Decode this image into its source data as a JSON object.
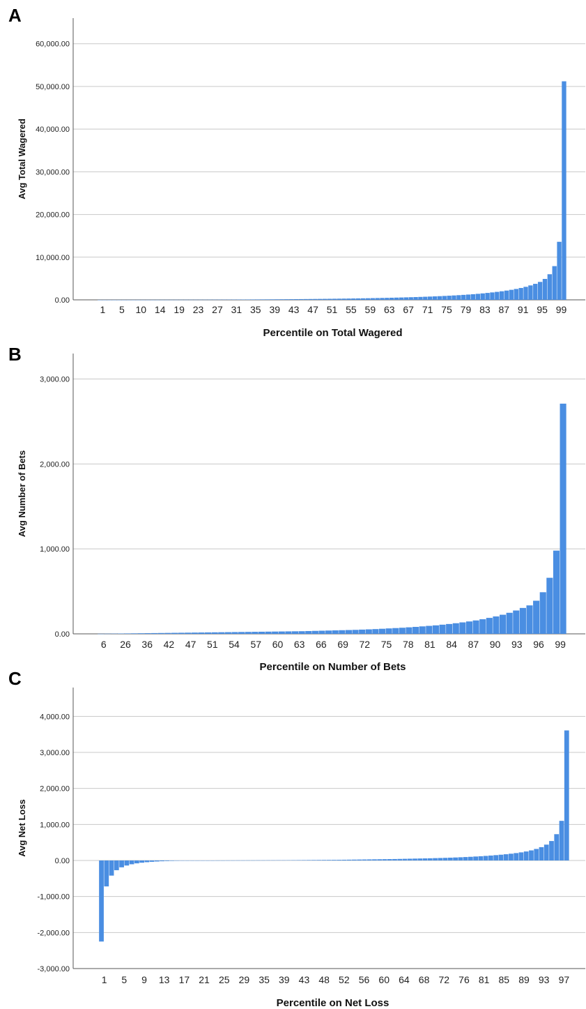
{
  "bar_color": "#4a8ee2",
  "chart_data": [
    {
      "panel": "A",
      "type": "bar",
      "xlabel": "Percentile on Total Wagered",
      "ylabel": "Avg Total Wagered",
      "ylim": [
        0,
        66000
      ],
      "yticks": [
        "0.00",
        "10,000.00",
        "20,000.00",
        "30,000.00",
        "40,000.00",
        "50,000.00",
        "60,000.00"
      ],
      "ytick_values": [
        0,
        10000,
        20000,
        30000,
        40000,
        50000,
        60000
      ],
      "xticks": [
        "1",
        "5",
        "10",
        "14",
        "19",
        "23",
        "27",
        "31",
        "35",
        "39",
        "43",
        "47",
        "51",
        "55",
        "59",
        "63",
        "67",
        "71",
        "75",
        "79",
        "83",
        "87",
        "91",
        "95",
        "99"
      ],
      "grid": true,
      "values": [
        1,
        2,
        3,
        4,
        5,
        6,
        7,
        8,
        9,
        10,
        12,
        14,
        16,
        18,
        20,
        22,
        25,
        28,
        31,
        34,
        37,
        40,
        44,
        48,
        52,
        56,
        60,
        65,
        70,
        75,
        80,
        86,
        92,
        98,
        105,
        112,
        120,
        128,
        136,
        145,
        154,
        164,
        174,
        185,
        196,
        208,
        220,
        233,
        246,
        260,
        275,
        290,
        306,
        323,
        341,
        360,
        380,
        401,
        423,
        446,
        470,
        496,
        523,
        552,
        583,
        616,
        651,
        688,
        728,
        770,
        815,
        863,
        915,
        970,
        1030,
        1095,
        1165,
        1240,
        1320,
        1410,
        1510,
        1620,
        1740,
        1870,
        2010,
        2170,
        2350,
        2550,
        2780,
        3050,
        3380,
        3750,
        4200,
        4900,
        6000,
        7900,
        13600,
        51200
      ]
    },
    {
      "panel": "B",
      "type": "bar",
      "xlabel": "Percentile on Number of Bets",
      "ylabel": "Avg Number of Bets",
      "ylim": [
        0,
        3300
      ],
      "yticks": [
        "0.00",
        "1,000.00",
        "2,000.00",
        "3,000.00"
      ],
      "ytick_values": [
        0,
        1000,
        2000,
        3000
      ],
      "xticks": [
        "6",
        "26",
        "36",
        "42",
        "47",
        "51",
        "54",
        "57",
        "60",
        "63",
        "66",
        "69",
        "72",
        "75",
        "78",
        "81",
        "84",
        "87",
        "90",
        "93",
        "96",
        "99"
      ],
      "grid": true,
      "values": [
        1,
        2,
        3,
        4,
        5,
        6,
        7,
        8,
        9,
        10,
        11,
        12,
        13,
        14,
        15,
        16,
        17,
        18,
        19,
        20,
        21,
        22,
        23,
        24,
        25,
        26,
        27,
        28,
        29,
        30,
        31,
        33,
        35,
        37,
        39,
        41,
        43,
        45,
        47,
        50,
        53,
        56,
        60,
        64,
        68,
        72,
        77,
        82,
        88,
        94,
        100,
        108,
        116,
        125,
        135,
        146,
        158,
        172,
        188,
        205,
        225,
        248,
        275,
        305,
        335,
        390,
        490,
        660,
        980,
        2710
      ]
    },
    {
      "panel": "C",
      "type": "bar",
      "xlabel": "Percentile on Net Loss",
      "ylabel": "Avg Net Loss",
      "ylim": [
        -3000,
        4800
      ],
      "yticks": [
        "-3,000.00",
        "-2,000.00",
        "-1,000.00",
        "0.00",
        "1,000.00",
        "2,000.00",
        "3,000.00",
        "4,000.00"
      ],
      "ytick_values": [
        -3000,
        -2000,
        -1000,
        0,
        1000,
        2000,
        3000,
        4000
      ],
      "xticks": [
        "1",
        "5",
        "9",
        "13",
        "17",
        "21",
        "25",
        "29",
        "35",
        "39",
        "43",
        "48",
        "52",
        "56",
        "60",
        "64",
        "68",
        "72",
        "76",
        "81",
        "85",
        "89",
        "93",
        "97"
      ],
      "grid": true,
      "values": [
        -2250,
        -720,
        -420,
        -270,
        -190,
        -140,
        -105,
        -80,
        -62,
        -48,
        -37,
        -28,
        -21,
        -16,
        -12,
        -9,
        -6,
        -4,
        -3,
        -2,
        -1,
        0,
        0,
        1,
        1,
        2,
        2,
        3,
        3,
        4,
        4,
        5,
        5,
        6,
        6,
        7,
        7,
        8,
        9,
        10,
        11,
        12,
        13,
        14,
        15,
        16,
        17,
        18,
        20,
        22,
        24,
        26,
        28,
        30,
        32,
        34,
        36,
        38,
        40,
        43,
        46,
        49,
        52,
        55,
        58,
        61,
        65,
        69,
        73,
        78,
        83,
        89,
        95,
        102,
        110,
        118,
        127,
        137,
        148,
        160,
        173,
        188,
        205,
        225,
        250,
        280,
        320,
        370,
        440,
        540,
        730,
        1100,
        3610
      ]
    }
  ]
}
